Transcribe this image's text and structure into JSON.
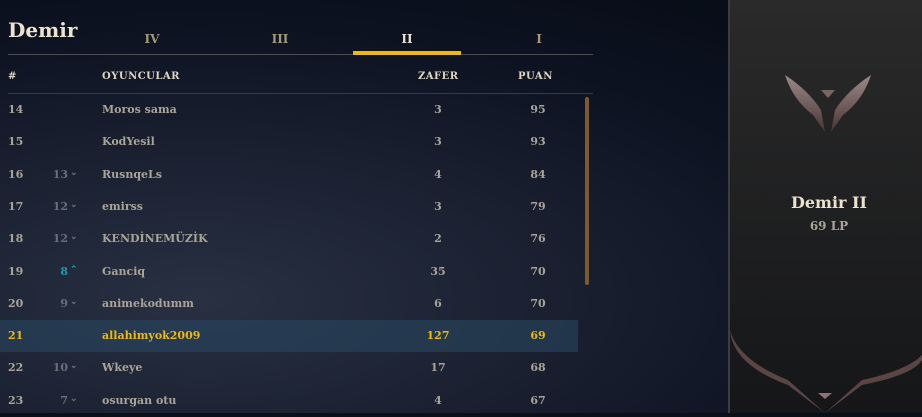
{
  "title": "Demir",
  "tabs": [
    {
      "label": "IV"
    },
    {
      "label": "III"
    },
    {
      "label": "II",
      "active": true
    },
    {
      "label": "I"
    }
  ],
  "columns": {
    "rank": "#",
    "players": "OYUNCULAR",
    "wins": "ZAFER",
    "points": "PUAN"
  },
  "rows": [
    {
      "rank": "14",
      "prev": "",
      "trend": "",
      "name": "Moros sama",
      "wins": "3",
      "points": "95"
    },
    {
      "rank": "15",
      "prev": "",
      "trend": "",
      "name": "KodYesil",
      "wins": "3",
      "points": "93"
    },
    {
      "rank": "16",
      "prev": "13",
      "trend": "down",
      "name": "RusnqeLs",
      "wins": "4",
      "points": "84"
    },
    {
      "rank": "17",
      "prev": "12",
      "trend": "down",
      "name": "emirss",
      "wins": "3",
      "points": "79"
    },
    {
      "rank": "18",
      "prev": "12",
      "trend": "down",
      "name": "KENDİNEMÜZİK",
      "wins": "2",
      "points": "76"
    },
    {
      "rank": "19",
      "prev": "8",
      "trend": "up",
      "name": "Ganciq",
      "wins": "35",
      "points": "70"
    },
    {
      "rank": "20",
      "prev": "9",
      "trend": "down",
      "name": "animekodumm",
      "wins": "6",
      "points": "70"
    },
    {
      "rank": "21",
      "prev": "",
      "trend": "",
      "name": "allahimyok2009",
      "wins": "127",
      "points": "69",
      "current_user": true
    },
    {
      "rank": "22",
      "prev": "10",
      "trend": "down",
      "name": "Wkeye",
      "wins": "17",
      "points": "68"
    },
    {
      "rank": "23",
      "prev": "7",
      "trend": "down",
      "name": "osurgan otu",
      "wins": "4",
      "points": "67"
    }
  ],
  "rank_panel": {
    "rank_name": "Demir II",
    "lp": "69 LP",
    "icon": "iron-emblem-icon"
  },
  "colors": {
    "accent": "#f0b90a",
    "up": "#1a9cb0"
  }
}
